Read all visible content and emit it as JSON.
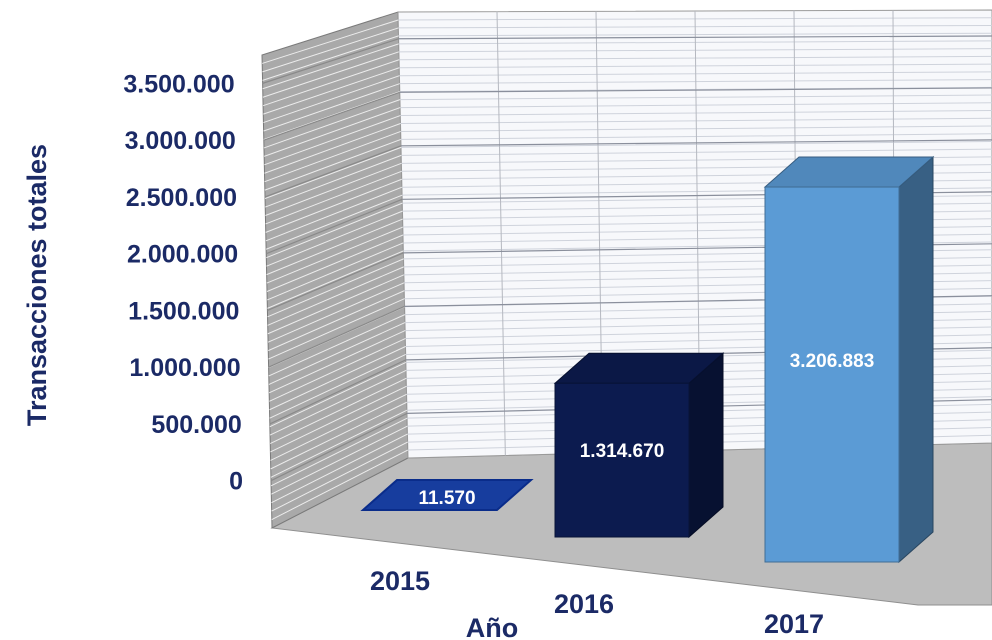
{
  "chart_data": {
    "type": "bar",
    "style": "3d-column",
    "categories": [
      "2015",
      "2016",
      "2017"
    ],
    "values": [
      11570,
      1314670,
      3206883
    ],
    "data_labels": [
      "11.570",
      "1.314.670",
      "3.206.883"
    ],
    "bar_colors": [
      "#173d9e",
      "#0c1b4f",
      "#5b9bd5"
    ],
    "ylabel": "Transacciones totales",
    "xlabel": "Año",
    "ylim": [
      0,
      3500000
    ],
    "yticks": [
      0,
      500000,
      1000000,
      1500000,
      2000000,
      2500000,
      3000000,
      3500000
    ],
    "ytick_labels": [
      "0",
      "500.000",
      "1.000.000",
      "1.500.000",
      "2.000.000",
      "2.500.000",
      "3.000.000",
      "3.500.000"
    ],
    "grid": true,
    "legend": "none"
  }
}
